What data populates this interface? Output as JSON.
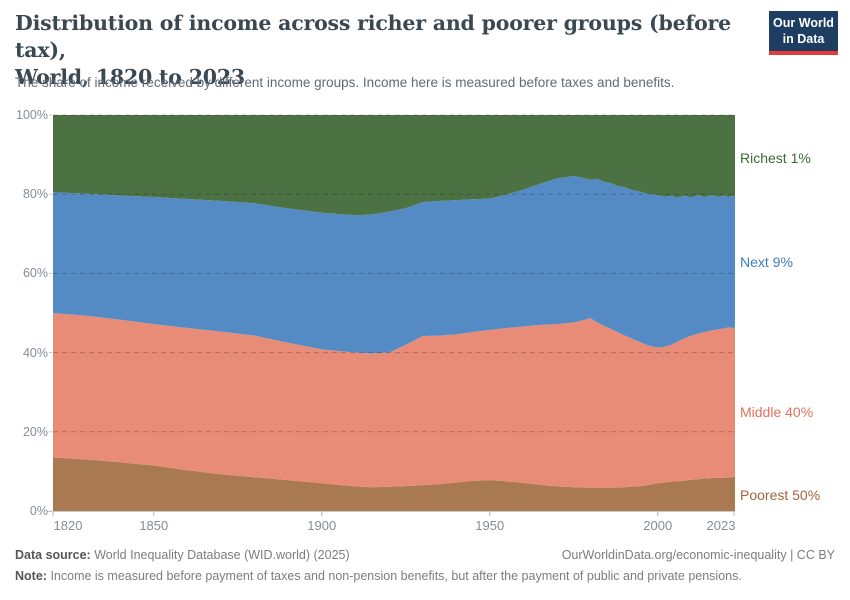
{
  "header": {
    "title_line1": "Distribution of income across richer and poorer groups (before tax),",
    "title_line2": "World, 1820 to 2023",
    "subtitle": "The share of income received by different income groups. Income here is measured before taxes and benefits.",
    "logo": {
      "line1": "Our World",
      "line2": "in Data"
    }
  },
  "chart_data": {
    "type": "area",
    "stacked": true,
    "title": "Distribution of income across richer and poorer groups (before tax), World, 1820 to 2023",
    "xlabel": "",
    "ylabel": "",
    "ylim": [
      0,
      100
    ],
    "grid": "dashed horizontal gridlines at 20% steps",
    "legend_position": "right, labels beside band ends",
    "x": [
      1820,
      1830,
      1840,
      1850,
      1860,
      1870,
      1880,
      1890,
      1900,
      1910,
      1915,
      1920,
      1925,
      1930,
      1935,
      1940,
      1945,
      1950,
      1955,
      1960,
      1965,
      1970,
      1975,
      1978,
      1980,
      1982,
      1984,
      1986,
      1988,
      1990,
      1992,
      1994,
      1996,
      1998,
      2000,
      2002,
      2004,
      2006,
      2008,
      2010,
      2012,
      2014,
      2016,
      2018,
      2020,
      2021,
      2022,
      2023
    ],
    "x_ticks": [
      {
        "value": 1820,
        "label": "1820"
      },
      {
        "value": 1850,
        "label": "1850"
      },
      {
        "value": 1900,
        "label": "1900"
      },
      {
        "value": 1950,
        "label": "1950"
      },
      {
        "value": 2000,
        "label": "2000"
      },
      {
        "value": 2023,
        "label": "2023"
      }
    ],
    "y_ticks": [
      {
        "value": 0,
        "label": "0%"
      },
      {
        "value": 20,
        "label": "20%"
      },
      {
        "value": 40,
        "label": "40%"
      },
      {
        "value": 60,
        "label": "60%"
      },
      {
        "value": 80,
        "label": "80%"
      },
      {
        "value": 100,
        "label": "100%"
      }
    ],
    "series": [
      {
        "name": "Poorest 50%",
        "color": "#a97a52",
        "label_color": "#a3643c",
        "values": [
          13.5,
          13.0,
          12.3,
          11.5,
          10.3,
          9.3,
          8.5,
          7.8,
          7.0,
          6.2,
          6.0,
          6.1,
          6.3,
          6.5,
          6.8,
          7.2,
          7.6,
          7.8,
          7.5,
          7.1,
          6.6,
          6.2,
          6.0,
          5.9,
          5.9,
          5.8,
          5.8,
          5.9,
          5.9,
          6.0,
          6.1,
          6.2,
          6.4,
          6.7,
          7.0,
          7.2,
          7.4,
          7.5,
          7.7,
          7.9,
          8.0,
          8.2,
          8.3,
          8.4,
          8.4,
          8.5,
          8.5,
          8.6
        ]
      },
      {
        "name": "Middle 40%",
        "color": "#e98c77",
        "label_color": "#e2705b",
        "values": [
          36.5,
          36.3,
          36.0,
          35.7,
          35.9,
          36.0,
          35.8,
          34.7,
          33.8,
          33.8,
          33.8,
          33.9,
          35.7,
          37.7,
          37.5,
          37.4,
          37.6,
          37.9,
          38.7,
          39.5,
          40.4,
          41.0,
          41.6,
          42.3,
          42.8,
          41.8,
          41.0,
          40.1,
          39.3,
          38.4,
          37.5,
          36.7,
          35.8,
          34.9,
          34.3,
          34.3,
          34.6,
          35.3,
          35.9,
          36.4,
          36.8,
          37.0,
          37.3,
          37.5,
          37.7,
          37.9,
          37.7,
          37.7
        ]
      },
      {
        "name": "Next 9%",
        "color": "#548bc4",
        "label_color": "#3d7ec0",
        "values": [
          30.5,
          30.8,
          31.4,
          32.1,
          32.6,
          33.0,
          33.4,
          33.9,
          34.5,
          34.7,
          35.1,
          35.6,
          34.5,
          33.8,
          34.0,
          33.9,
          33.5,
          33.2,
          33.7,
          34.5,
          35.6,
          36.8,
          37.0,
          35.9,
          34.9,
          36.3,
          36.3,
          36.8,
          36.9,
          37.4,
          37.5,
          37.9,
          38.1,
          38.4,
          38.5,
          37.9,
          37.6,
          36.3,
          36.1,
          34.9,
          35.0,
          34.1,
          34.2,
          33.5,
          33.6,
          32.9,
          33.4,
          33.2
        ]
      },
      {
        "name": "Richest 1%",
        "color": "#4c7243",
        "label_color": "#3a6b35",
        "values": [
          19.5,
          19.9,
          20.3,
          20.7,
          21.2,
          21.7,
          22.3,
          23.6,
          24.7,
          25.3,
          25.1,
          24.4,
          23.5,
          22.0,
          21.7,
          21.5,
          21.3,
          21.1,
          20.1,
          18.9,
          17.4,
          16.0,
          15.4,
          15.9,
          16.4,
          16.1,
          16.9,
          17.2,
          17.9,
          18.2,
          18.9,
          19.2,
          19.7,
          20.0,
          20.2,
          20.6,
          20.4,
          20.9,
          20.3,
          20.8,
          20.2,
          20.7,
          20.2,
          20.6,
          20.3,
          20.7,
          20.4,
          20.5
        ]
      }
    ]
  },
  "footer": {
    "data_source_label": "Data source:",
    "data_source_text": "World Inequality Database (WID.world) (2025)",
    "link_text": "OurWorldinData.org/economic-inequality",
    "separator": "|",
    "license": "CC BY",
    "note_label": "Note:",
    "note_text": "Income is measured before payment of taxes and non-pension benefits, but after the payment of public and private pensions."
  }
}
